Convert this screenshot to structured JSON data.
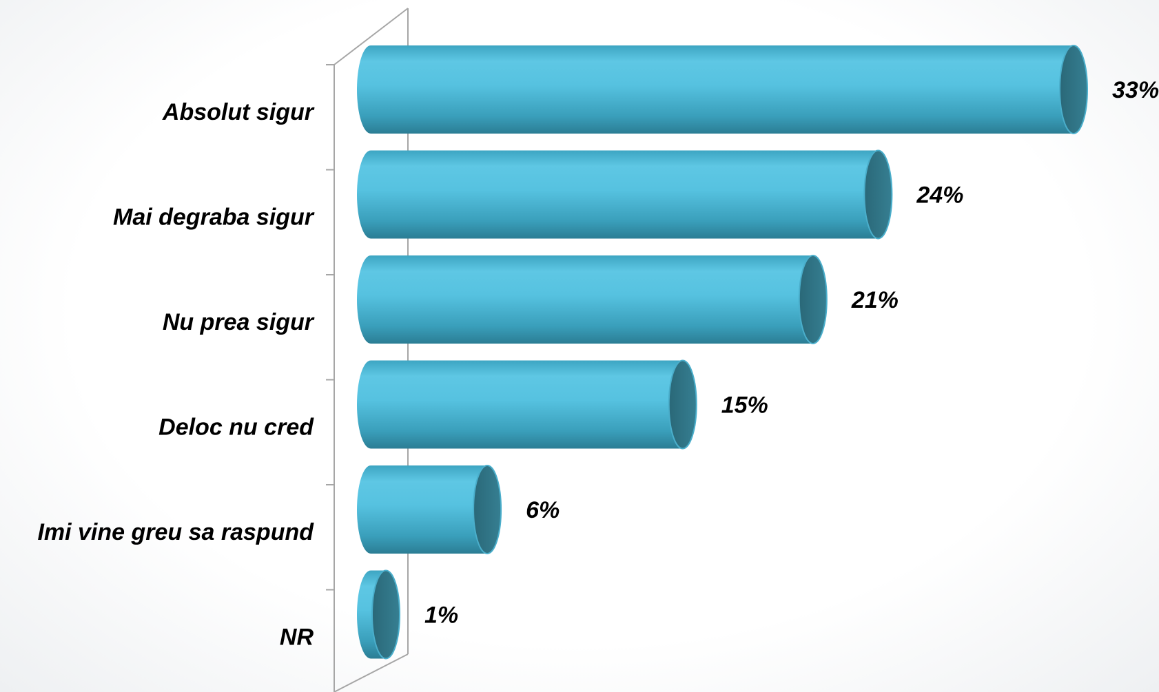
{
  "chart_data": {
    "type": "bar",
    "orientation": "horizontal",
    "style": "3d-cylinder",
    "categories": [
      "Absolut sigur",
      "Mai degraba sigur",
      "Nu prea sigur",
      "Deloc nu cred",
      "Imi vine greu sa raspund",
      "NR"
    ],
    "values": [
      33,
      24,
      21,
      15,
      6,
      1
    ],
    "value_labels": [
      "33%",
      "24%",
      "21%",
      "15%",
      "6%",
      "1%"
    ],
    "unit": "%",
    "xlim": [
      0,
      33
    ],
    "grid": false,
    "legend": "none",
    "colors": {
      "bar_body": "#4fb8d6",
      "bar_highlight": "#5ec7e4",
      "bar_shadow": "#2b7d94",
      "bar_cap": "#2e6f80",
      "axis": "#a6a6a6"
    }
  }
}
